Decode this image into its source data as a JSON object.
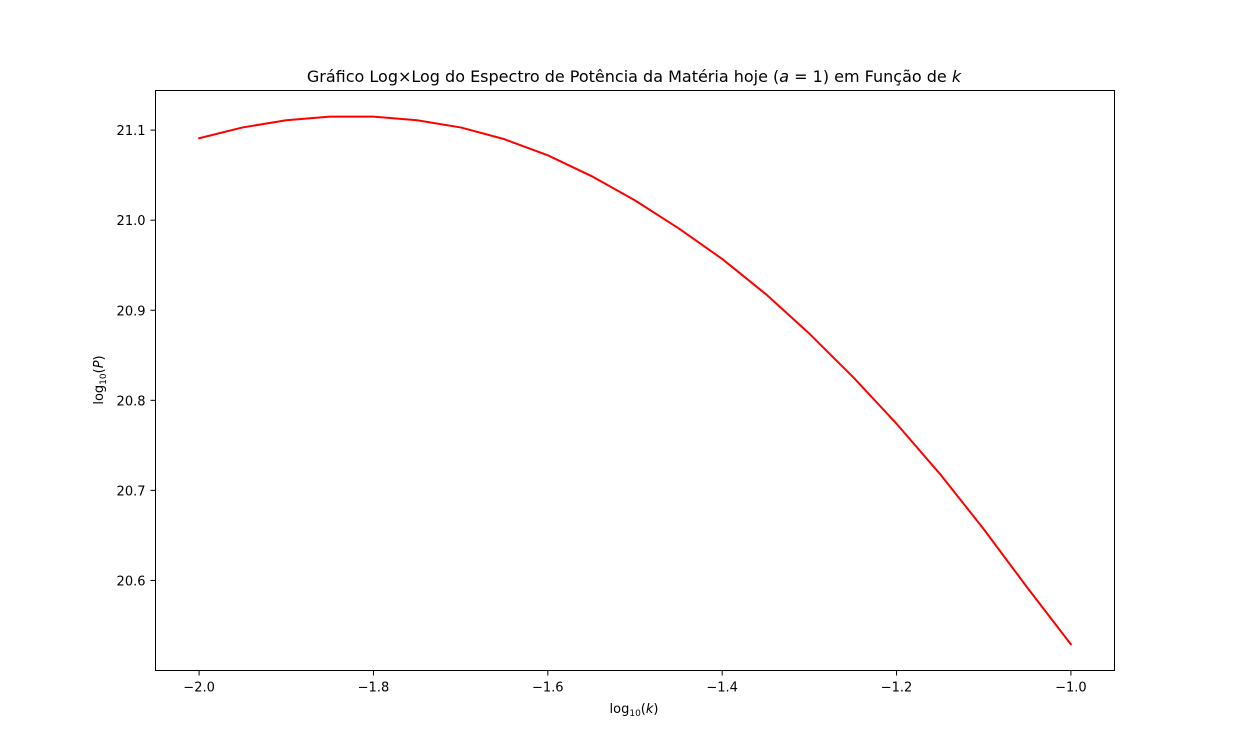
{
  "chart_data": {
    "type": "line",
    "title_parts": {
      "prefix": "Gráfico Log×Log do Espectro de Potência da Matéria hoje (",
      "var_a": "a",
      "equals": " = 1) em Função de ",
      "var_k": "k"
    },
    "xlabel_parts": {
      "base": "log",
      "sub": "10",
      "open": "(",
      "var": "k",
      "close": ")"
    },
    "ylabel_parts": {
      "base": "log",
      "sub": "10",
      "open": "(",
      "var": "P",
      "close": ")"
    },
    "xlim": [
      -2.05,
      -0.95
    ],
    "ylim": [
      20.5,
      21.144
    ],
    "x_ticks": [
      -2.0,
      -1.8,
      -1.6,
      -1.4,
      -1.2,
      -1.0
    ],
    "x_tick_labels": [
      "−2.0",
      "−1.8",
      "−1.6",
      "−1.4",
      "−1.2",
      "−1.0"
    ],
    "y_ticks": [
      20.6,
      20.7,
      20.8,
      20.9,
      21.0,
      21.1
    ],
    "y_tick_labels": [
      "20.6",
      "20.7",
      "20.8",
      "20.9",
      "21.0",
      "21.1"
    ],
    "grid": false,
    "series": [
      {
        "color": "#ff0000",
        "x": [
          -2.0,
          -1.95,
          -1.9,
          -1.85,
          -1.8,
          -1.75,
          -1.7,
          -1.65,
          -1.6,
          -1.55,
          -1.5,
          -1.45,
          -1.4,
          -1.35,
          -1.3,
          -1.25,
          -1.2,
          -1.15,
          -1.1,
          -1.05,
          -1.0
        ],
        "y": [
          21.091,
          21.103,
          21.111,
          21.115,
          21.115,
          21.111,
          21.103,
          21.09,
          21.072,
          21.049,
          21.022,
          20.991,
          20.957,
          20.918,
          20.874,
          20.826,
          20.774,
          20.718,
          20.657,
          20.592,
          20.529
        ]
      }
    ]
  }
}
